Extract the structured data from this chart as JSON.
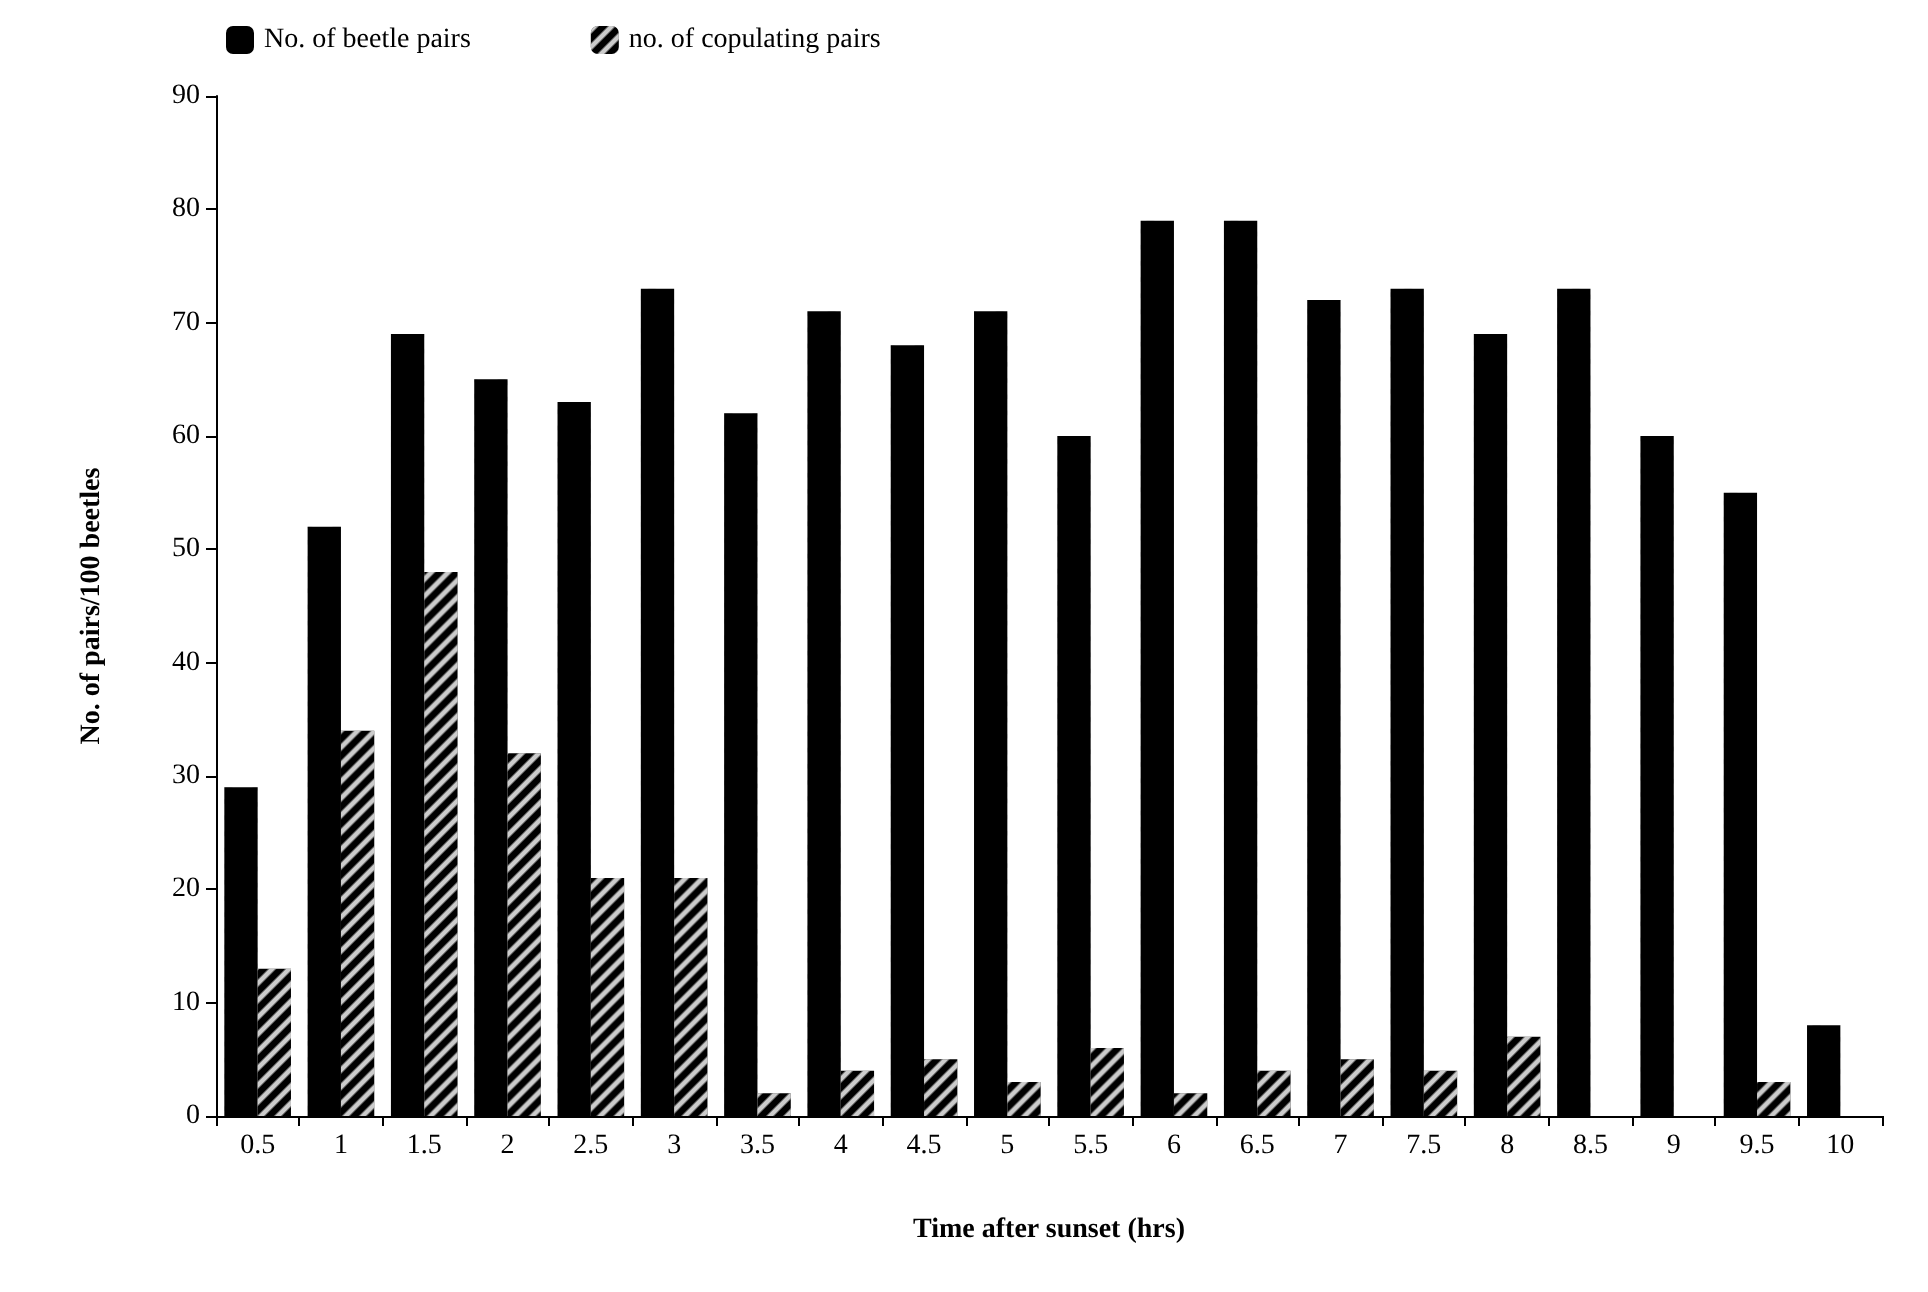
{
  "chart_data": {
    "type": "bar",
    "xlabel": "Time after sunset (hrs)",
    "ylabel": "No. of pairs/100 beetles",
    "categories": [
      "0.5",
      "1",
      "1.5",
      "2",
      "2.5",
      "3",
      "3.5",
      "4",
      "4.5",
      "5",
      "5.5",
      "6",
      "6.5",
      "7",
      "7.5",
      "8",
      "8.5",
      "9",
      "9.5",
      "10"
    ],
    "series": [
      {
        "name": "No. of beetle pairs",
        "color": "#000000",
        "values": [
          29,
          52,
          69,
          65,
          63,
          73,
          62,
          71,
          68,
          71,
          60,
          79,
          79,
          72,
          73,
          69,
          73,
          60,
          55,
          8
        ]
      },
      {
        "name": "no. of copulating pairs",
        "color": "#000000",
        "values": [
          13,
          34,
          48,
          32,
          21,
          21,
          2,
          4,
          5,
          3,
          6,
          2,
          4,
          5,
          4,
          7,
          null,
          null,
          3,
          null
        ]
      }
    ],
    "ylim": [
      0,
      90
    ],
    "yticks": [
      0,
      10,
      20,
      30,
      40,
      50,
      60,
      70,
      80,
      90
    ],
    "grid": false,
    "legend": "top"
  }
}
